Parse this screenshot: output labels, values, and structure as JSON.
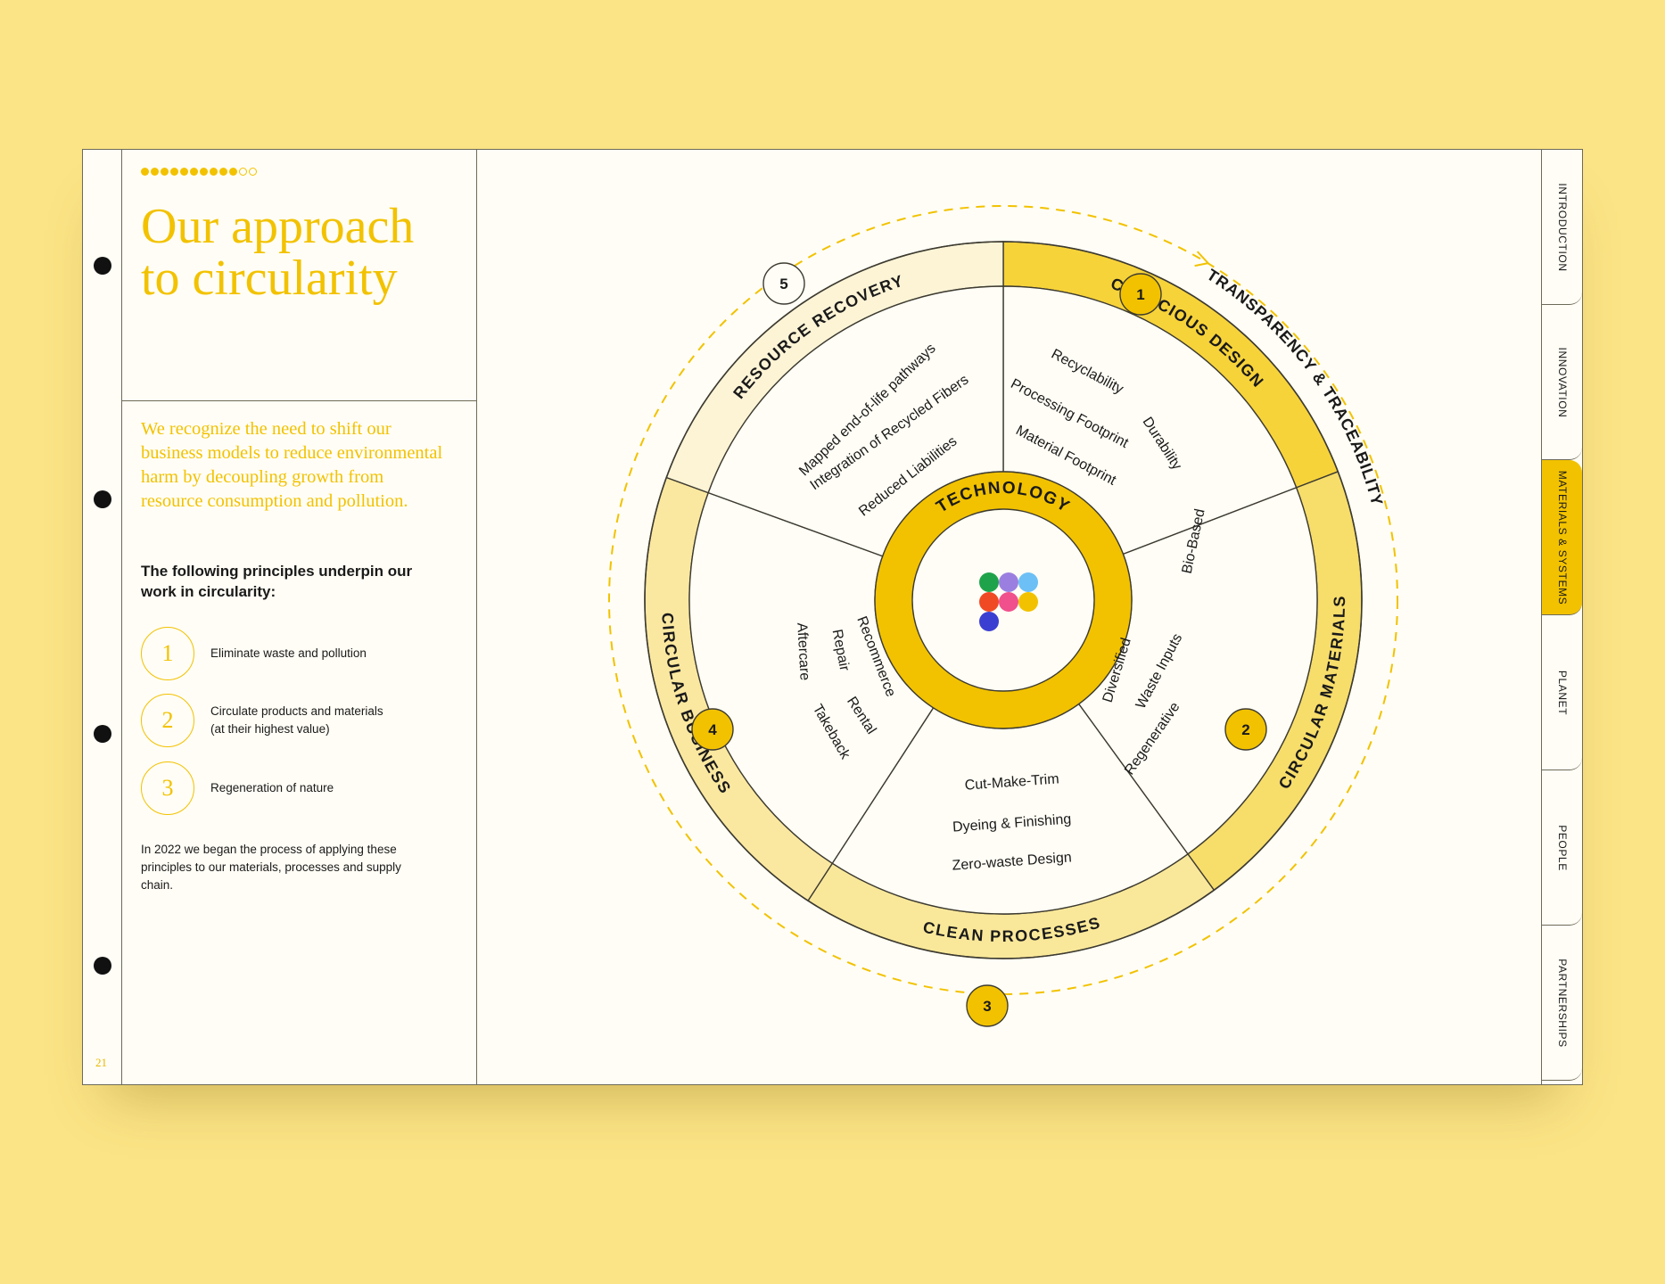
{
  "page_number": "21",
  "progress": {
    "filled": 10,
    "total": 12
  },
  "title": {
    "line1": "Our approach",
    "line2": "to circularity"
  },
  "intro": "We recognize the need to shift our business models to reduce environmental harm by decoupling growth from resource consumption and pollution.",
  "principles_heading": "The following principles underpin our work in circularity:",
  "principles": [
    {
      "num": "1",
      "line1": "Eliminate waste and pollution",
      "line2": ""
    },
    {
      "num": "2",
      "line1": "Circulate products and materials",
      "line2": "(at their highest value)"
    },
    {
      "num": "3",
      "line1": "Regeneration of nature",
      "line2": ""
    }
  ],
  "closing": "In 2022 we began the process of applying these principles to our materials, processes and supply chain.",
  "diagram": {
    "center_label": "TECHNOLOGY",
    "outer_label": "TRANSPARENCY & TRACEABILITY",
    "sectors": [
      {
        "num": "1",
        "label": "CONSCIOUS DESIGN",
        "items": [
          "Recyclability",
          "Processing Footprint",
          "Material Footprint",
          "Durability"
        ]
      },
      {
        "num": "2",
        "label": "CIRCULAR MATERIALS",
        "items": [
          "Bio-Based",
          "Waste Inputs",
          "Diversified",
          "Regenerative"
        ]
      },
      {
        "num": "3",
        "label": "CLEAN PROCESSES",
        "items": [
          "Cut-Make-Trim",
          "Dyeing & Finishing",
          "Zero-waste Design"
        ]
      },
      {
        "num": "4",
        "label": "CIRCULAR BUSINESS",
        "items": [
          "Recommerce",
          "Repair",
          "Aftercare",
          "Rental",
          "Takeback"
        ]
      },
      {
        "num": "5",
        "label": "RESOURCE RECOVERY",
        "items": [
          "Mapped end-of-life pathways",
          "Integration of Recycled Fibers",
          "Reduced Liabilities"
        ]
      }
    ],
    "logo_dot_colors": [
      "#1fa34a",
      "#9b7fe0",
      "#6cc0f5",
      "#f04a24",
      "#f0508c",
      "#f2c200",
      "#3b3fd1"
    ]
  },
  "nav_tabs": [
    {
      "label": "INTRODUCTION",
      "active": false
    },
    {
      "label": "INNOVATION",
      "active": false
    },
    {
      "label": "MATERIALS & SYSTEMS",
      "active": true
    },
    {
      "label": "PLANET",
      "active": false
    },
    {
      "label": "PEOPLE",
      "active": false
    },
    {
      "label": "PARTNERSHIPS",
      "active": false
    }
  ],
  "colors": {
    "background": "#fbe485",
    "accent": "#f2c200",
    "sector_fills": [
      "#f7d33a",
      "#f7dd6a",
      "#fae89a",
      "#fbe8a0",
      "#fdf4d6"
    ],
    "ink": "#1a1a1a"
  }
}
